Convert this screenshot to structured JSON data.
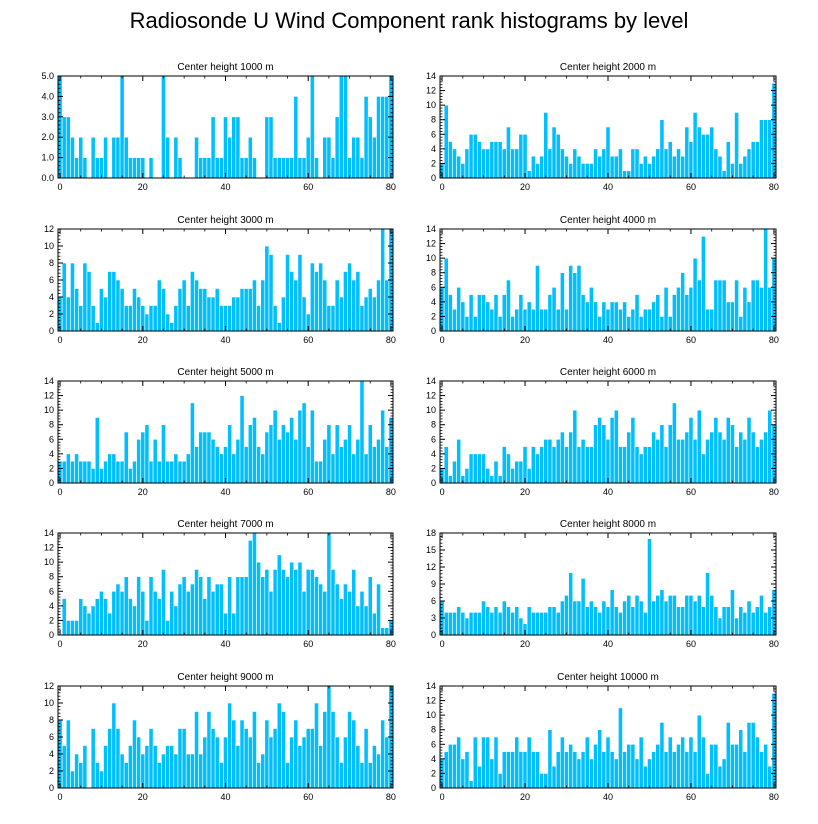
{
  "title": "Radiosonde U Wind Component rank histograms by level",
  "colors": {
    "bar": "#00BFFF",
    "bar_edge": "#ffffff",
    "axis": "#000000"
  },
  "chart_data": [
    {
      "type": "bar",
      "title": "Center height 1000 m",
      "ylim": [
        0,
        5
      ],
      "yticks": [
        "0.0",
        "1.0",
        "2.0",
        "3.0",
        "4.0",
        "5.0"
      ],
      "xticks": [
        "0",
        "20",
        "40",
        "60",
        "80"
      ],
      "values": [
        5,
        3,
        3,
        2,
        1,
        2,
        1,
        0,
        2,
        1,
        1,
        2,
        0,
        2,
        2,
        5,
        2,
        1,
        1,
        1,
        1,
        0,
        1,
        0,
        0,
        5,
        2,
        0,
        2,
        1,
        0,
        0,
        0,
        2,
        1,
        1,
        1,
        3,
        1,
        1,
        3,
        2,
        3,
        3,
        1,
        1,
        2,
        1,
        0,
        0,
        3,
        3,
        1,
        1,
        1,
        1,
        1,
        4,
        1,
        1,
        2,
        5,
        1,
        0,
        2,
        2,
        1,
        3,
        5,
        5,
        1,
        2,
        2,
        1,
        4,
        3,
        2,
        4,
        4,
        4,
        5
      ]
    },
    {
      "type": "bar",
      "title": "Center height 2000 m",
      "ylim": [
        0,
        14
      ],
      "yticks": [
        "0",
        "2",
        "4",
        "6",
        "8",
        "10",
        "12",
        "14"
      ],
      "xticks": [
        "0",
        "20",
        "40",
        "60",
        "80"
      ],
      "values": [
        2,
        10,
        5,
        4,
        3,
        2,
        4,
        6,
        6,
        5,
        4,
        4,
        5,
        5,
        5,
        4,
        7,
        4,
        4,
        6,
        6,
        1,
        3,
        2,
        3,
        9,
        4,
        7,
        6,
        4,
        3,
        2,
        4,
        3,
        2,
        2,
        2,
        4,
        3,
        4,
        7,
        3,
        3,
        4,
        1,
        1,
        4,
        4,
        2,
        3,
        2,
        3,
        4,
        8,
        4,
        5,
        3,
        4,
        3,
        7,
        5,
        9,
        7,
        6,
        6,
        7,
        4,
        3,
        1,
        5,
        2,
        9,
        2,
        3,
        4,
        5,
        5,
        8,
        8,
        8,
        13
      ]
    },
    {
      "type": "bar",
      "title": "Center height 3000 m",
      "ylim": [
        0,
        12
      ],
      "yticks": [
        "0",
        "2",
        "4",
        "6",
        "8",
        "10",
        "12"
      ],
      "xticks": [
        "0",
        "20",
        "40",
        "60",
        "80"
      ],
      "values": [
        4,
        8,
        4,
        8,
        5,
        3,
        8,
        7,
        3,
        1,
        5,
        4,
        7,
        7,
        6,
        5,
        3,
        3,
        5,
        4,
        3,
        2,
        3,
        3,
        6,
        5,
        2,
        1,
        3,
        5,
        6,
        3,
        7,
        6,
        5,
        5,
        4,
        4,
        5,
        3,
        3,
        3,
        4,
        4,
        5,
        5,
        5,
        6,
        3,
        6,
        10,
        9,
        3,
        1,
        4,
        9,
        7,
        6,
        9,
        4,
        2,
        8,
        7,
        8,
        6,
        3,
        3,
        6,
        4,
        7,
        8,
        6,
        7,
        3,
        4,
        5,
        4,
        6,
        12,
        6,
        12
      ]
    },
    {
      "type": "bar",
      "title": "Center height 4000 m",
      "ylim": [
        0,
        14
      ],
      "yticks": [
        "0",
        "2",
        "4",
        "6",
        "8",
        "10",
        "12",
        "14"
      ],
      "xticks": [
        "0",
        "20",
        "40",
        "60",
        "80"
      ],
      "values": [
        6,
        10,
        5,
        3,
        6,
        4,
        2,
        5,
        2,
        5,
        5,
        4,
        3,
        5,
        2,
        5,
        7,
        2,
        3,
        5,
        3,
        4,
        3,
        9,
        3,
        3,
        5,
        6,
        3,
        8,
        3,
        9,
        8,
        9,
        5,
        4,
        6,
        4,
        2,
        4,
        3,
        4,
        4,
        3,
        4,
        2,
        3,
        5,
        2,
        3,
        3,
        4,
        5,
        2,
        6,
        2,
        5,
        6,
        8,
        5,
        6,
        10,
        7,
        13,
        3,
        3,
        7,
        7,
        7,
        4,
        4,
        7,
        2,
        6,
        4,
        7,
        7,
        6,
        14,
        6,
        10
      ]
    },
    {
      "type": "bar",
      "title": "Center height 5000 m",
      "ylim": [
        0,
        14
      ],
      "yticks": [
        "0",
        "2",
        "4",
        "6",
        "8",
        "10",
        "12",
        "14"
      ],
      "xticks": [
        "0",
        "20",
        "40",
        "60",
        "80"
      ],
      "values": [
        3,
        3,
        4,
        3,
        4,
        3,
        3,
        3,
        2,
        9,
        2,
        3,
        4,
        4,
        3,
        3,
        7,
        2,
        3,
        6,
        7,
        8,
        3,
        6,
        3,
        8,
        3,
        3,
        4,
        3,
        3,
        4,
        11,
        5,
        7,
        7,
        7,
        6,
        5,
        4,
        5,
        8,
        4,
        6,
        12,
        5,
        8,
        9,
        5,
        4,
        7,
        8,
        10,
        6,
        8,
        7,
        9,
        6,
        10,
        11,
        5,
        10,
        3,
        3,
        6,
        8,
        4,
        8,
        5,
        6,
        8,
        4,
        6,
        14,
        4,
        8,
        5,
        6,
        10,
        5,
        9
      ]
    },
    {
      "type": "bar",
      "title": "Center height 6000 m",
      "ylim": [
        0,
        14
      ],
      "yticks": [
        "0",
        "2",
        "4",
        "6",
        "8",
        "10",
        "12",
        "14"
      ],
      "xticks": [
        "0",
        "20",
        "40",
        "60",
        "80"
      ],
      "values": [
        2,
        5,
        1,
        3,
        6,
        1,
        2,
        4,
        4,
        4,
        4,
        2,
        1,
        3,
        1,
        5,
        4,
        2,
        3,
        3,
        5,
        2,
        5,
        4,
        5,
        6,
        6,
        5,
        6,
        7,
        5,
        7,
        10,
        5,
        6,
        5,
        5,
        8,
        9,
        8,
        6,
        9,
        10,
        5,
        5,
        7,
        9,
        5,
        4,
        5,
        5,
        7,
        6,
        8,
        5,
        8,
        11,
        6,
        6,
        7,
        9,
        6,
        10,
        4,
        6,
        7,
        9,
        7,
        6,
        9,
        8,
        5,
        7,
        6,
        9,
        7,
        5,
        6,
        7,
        10,
        8
      ]
    },
    {
      "type": "bar",
      "title": "Center height 7000 m",
      "ylim": [
        0,
        14
      ],
      "yticks": [
        "0",
        "2",
        "4",
        "6",
        "8",
        "10",
        "12",
        "14"
      ],
      "xticks": [
        "0",
        "20",
        "40",
        "60",
        "80"
      ],
      "values": [
        0,
        5,
        2,
        2,
        2,
        5,
        4,
        3,
        4,
        5,
        6,
        5,
        3,
        6,
        7,
        6,
        8,
        5,
        4,
        8,
        6,
        2,
        8,
        6,
        5,
        9,
        2,
        6,
        4,
        7,
        8,
        6,
        7,
        9,
        8,
        5,
        8,
        6,
        7,
        7,
        3,
        8,
        3,
        8,
        8,
        8,
        13,
        14,
        10,
        8,
        9,
        6,
        9,
        11,
        9,
        8,
        10,
        9,
        10,
        6,
        9,
        9,
        8,
        7,
        6,
        14,
        9,
        7,
        5,
        7,
        6,
        9,
        4,
        6,
        4,
        8,
        3,
        7,
        1,
        1,
        2
      ]
    },
    {
      "type": "bar",
      "title": "Center height 8000 m",
      "ylim": [
        0,
        18
      ],
      "yticks": [
        "0",
        "3",
        "6",
        "9",
        "12",
        "15",
        "18"
      ],
      "xticks": [
        "0",
        "20",
        "40",
        "60",
        "80"
      ],
      "values": [
        6,
        4,
        4,
        4,
        5,
        4,
        3,
        4,
        4,
        4,
        6,
        5,
        4,
        5,
        4,
        6,
        5,
        4,
        5,
        3,
        2,
        5,
        4,
        4,
        4,
        4,
        5,
        5,
        4,
        6,
        7,
        11,
        6,
        6,
        10,
        5,
        6,
        5,
        4,
        6,
        5,
        8,
        5,
        4,
        6,
        7,
        5,
        7,
        6,
        4,
        17,
        6,
        7,
        8,
        6,
        7,
        7,
        5,
        5,
        7,
        7,
        6,
        7,
        5,
        11,
        7,
        5,
        3,
        5,
        5,
        8,
        3,
        5,
        4,
        6,
        4,
        5,
        7,
        4,
        5,
        8
      ]
    },
    {
      "type": "bar",
      "title": "Center height 9000 m",
      "ylim": [
        0,
        12
      ],
      "yticks": [
        "0",
        "2",
        "4",
        "6",
        "8",
        "10",
        "12"
      ],
      "xticks": [
        "0",
        "20",
        "40",
        "60",
        "80"
      ],
      "values": [
        8,
        5,
        8,
        2,
        4,
        3,
        5,
        0,
        7,
        3,
        2,
        5,
        7,
        10,
        7,
        4,
        3,
        5,
        8,
        6,
        4,
        5,
        7,
        5,
        3,
        4,
        5,
        5,
        4,
        7,
        7,
        4,
        4,
        9,
        4,
        6,
        9,
        7,
        6,
        3,
        6,
        10,
        8,
        5,
        8,
        7,
        6,
        9,
        3,
        4,
        8,
        6,
        7,
        10,
        9,
        3,
        6,
        8,
        5,
        6,
        7,
        7,
        10,
        5,
        9,
        12,
        9,
        6,
        3,
        6,
        9,
        8,
        5,
        3,
        7,
        3,
        5,
        4,
        8,
        6,
        12
      ]
    },
    {
      "type": "bar",
      "title": "Center height 10000 m",
      "ylim": [
        0,
        14
      ],
      "yticks": [
        "0",
        "2",
        "4",
        "6",
        "8",
        "10",
        "12",
        "14"
      ],
      "xticks": [
        "0",
        "20",
        "40",
        "60",
        "80"
      ],
      "values": [
        4,
        5,
        6,
        6,
        7,
        4,
        5,
        1,
        7,
        3,
        7,
        7,
        4,
        7,
        2,
        5,
        5,
        5,
        7,
        5,
        5,
        7,
        5,
        5,
        2,
        2,
        8,
        3,
        5,
        7,
        5,
        6,
        5,
        4,
        5,
        7,
        4,
        6,
        8,
        5,
        7,
        5,
        4,
        11,
        5,
        6,
        6,
        4,
        7,
        3,
        4,
        5,
        6,
        9,
        5,
        7,
        5,
        6,
        7,
        5,
        7,
        5,
        10,
        7,
        2,
        6,
        6,
        3,
        4,
        9,
        6,
        6,
        8,
        5,
        9,
        9,
        7,
        5,
        6,
        3,
        13
      ]
    }
  ]
}
